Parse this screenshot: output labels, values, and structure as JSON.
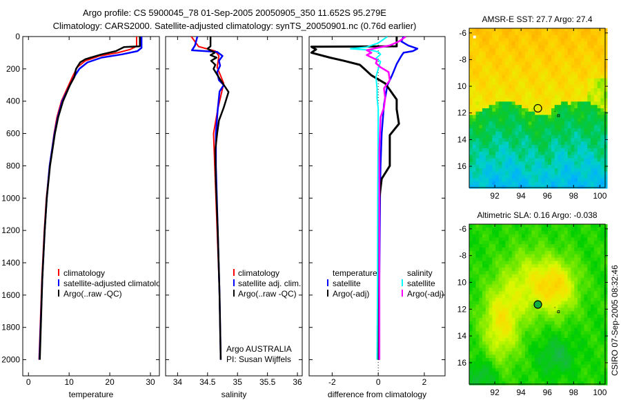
{
  "header": {
    "title_line1": "Argo profile: CS 5900045_78 01-Sep-2005 20050905_350 11.652S 95.279E",
    "title_line2": "Climatology: CARS2000. Satellite-adjusted climatology: synTS_20050901.nc (0.76d earlier)"
  },
  "side_label": "CSIRO 07-Sep-2005 08:32:46",
  "annotation": {
    "line1": "Argo AUSTRALIA",
    "line2": "PI: Susan Wijffels"
  },
  "legends": {
    "temperature": [
      "climatology",
      "satellite-adjusted climatology",
      "Argo(..raw -QC)"
    ],
    "salinity": [
      "climatology",
      "satellite adj. clim.",
      "Argo(..raw -QC)"
    ],
    "difference": {
      "temp_header": "temperature",
      "sal_header": "salinity",
      "temp_items": [
        "satellite",
        "Argo(-adj)"
      ],
      "sal_items": [
        "satellite",
        "Argo(-adj)"
      ]
    }
  },
  "colors": {
    "climatology": "#ff0000",
    "satellite": "#0000ff",
    "argo": "#000000",
    "sal_satellite": "#00ffff",
    "sal_argo": "#ff00ff"
  },
  "chart_data": [
    {
      "type": "line",
      "id": "temperature",
      "xlabel": "temperature",
      "ylabel": "depth",
      "xlim": [
        -1.4,
        32.2
      ],
      "ylim": [
        2100,
        0
      ],
      "xticks": [
        0,
        10,
        20,
        30
      ],
      "xticklabels": [
        "0",
        "10",
        "20",
        "30"
      ],
      "yticks": [
        0,
        200,
        400,
        600,
        800,
        1000,
        1200,
        1400,
        1600,
        1800,
        2000
      ],
      "yticklabels": [
        "0",
        "200",
        "400",
        "600",
        "800",
        "1000",
        "1200",
        "1400",
        "1600",
        "1800",
        "2000"
      ],
      "series": [
        {
          "name": "climatology",
          "color": "#ff0000",
          "width": 2,
          "depth": [
            0,
            60,
            80,
            100,
            120,
            150,
            190,
            250,
            300,
            400,
            500,
            600,
            800,
            1000,
            1200,
            1500,
            2000
          ],
          "values": [
            26.6,
            26.6,
            25,
            22,
            17.5,
            14,
            12,
            10.8,
            9.9,
            8.1,
            7,
            6.3,
            5.2,
            4.4,
            3.9,
            3.3,
            2.6
          ]
        },
        {
          "name": "satellite-adjusted climatology",
          "color": "#0000ff",
          "width": 2.5,
          "depth": [
            0,
            70,
            90,
            110,
            130,
            160,
            200,
            250,
            300,
            400,
            500,
            600,
            800,
            1000,
            1200,
            1500,
            2000
          ],
          "values": [
            27.8,
            27.8,
            26.8,
            23,
            18,
            14.5,
            12.5,
            11.2,
            10.2,
            8.3,
            7.2,
            6.4,
            5.2,
            4.5,
            4,
            3.4,
            2.7
          ]
        },
        {
          "name": "Argo(..raw -QC)",
          "color": "#000000",
          "width": 2.5,
          "depth": [
            0,
            60,
            65,
            90,
            110,
            140,
            160,
            200,
            250,
            300,
            400,
            500,
            600,
            800,
            1000,
            1200,
            1500,
            2000
          ],
          "values": [
            27.4,
            27.4,
            23.5,
            21.5,
            18,
            14,
            12.7,
            11.7,
            11.3,
            10.2,
            8.5,
            7.3,
            6.5,
            5.3,
            4.5,
            4,
            3.4,
            2.8
          ]
        }
      ]
    },
    {
      "type": "line",
      "id": "salinity",
      "xlabel": "salinity",
      "xlim": [
        33.8,
        36.08
      ],
      "ylim": [
        2100,
        0
      ],
      "xticks": [
        34,
        34.5,
        35,
        35.5,
        36
      ],
      "xticklabels": [
        "34",
        "34.5",
        "35",
        "35.5",
        "36"
      ],
      "yticks": [
        0,
        200,
        400,
        600,
        800,
        1000,
        1200,
        1400,
        1600,
        1800,
        2000
      ],
      "series": [
        {
          "name": "climatology",
          "color": "#ff0000",
          "width": 2,
          "depth": [
            0,
            62,
            90,
            120,
            190,
            290,
            450,
            600,
            800,
            1200,
            1600,
            2000
          ],
          "values": [
            34.23,
            34.35,
            34.63,
            34.69,
            34.66,
            34.77,
            34.67,
            34.6,
            34.62,
            34.66,
            34.7,
            34.72
          ]
        },
        {
          "name": "satellite adj. clim.",
          "color": "#0000ff",
          "width": 2.5,
          "depth": [
            0,
            55,
            85,
            95,
            120,
            150,
            180,
            220,
            270,
            300,
            340,
            450,
            600,
            800,
            1200,
            1600,
            2000
          ],
          "values": [
            34.33,
            34.29,
            34.24,
            34.66,
            34.75,
            34.69,
            34.71,
            34.66,
            34.69,
            34.77,
            34.7,
            34.67,
            34.64,
            34.64,
            34.67,
            34.7,
            34.72
          ]
        },
        {
          "name": "Argo(..raw -QC)",
          "color": "#000000",
          "width": 2.5,
          "depth": [
            0,
            60,
            75,
            100,
            115,
            130,
            150,
            175,
            200,
            260,
            343,
            440,
            520,
            600,
            700,
            900,
            1200,
            1600,
            2000
          ],
          "values": [
            34.55,
            34.55,
            34.5,
            34.62,
            34.55,
            34.65,
            34.56,
            34.63,
            34.6,
            34.7,
            34.85,
            34.77,
            34.69,
            34.66,
            34.63,
            34.64,
            34.67,
            34.7,
            34.72
          ]
        }
      ]
    },
    {
      "type": "line",
      "id": "difference",
      "xlabel": "difference from climatology",
      "xlim": [
        -3,
        2.9
      ],
      "ylim": [
        2100,
        0
      ],
      "xticks": [
        -2,
        0,
        2
      ],
      "xticklabels": [
        "-2",
        "0",
        "2"
      ],
      "yticks": [
        0,
        200,
        400,
        600,
        800,
        1000,
        1200,
        1400,
        1600,
        1800,
        2000
      ],
      "series": [
        {
          "name": "temperature satellite",
          "color": "#0000ff",
          "width": 2.5,
          "depth": [
            0,
            30,
            55,
            75,
            90,
            100,
            120,
            170,
            240,
            300,
            420,
            600,
            800,
            1000,
            1500,
            2000
          ],
          "values": [
            1.1,
            1.0,
            1.3,
            1.7,
            1.5,
            1.1,
            1.0,
            0.8,
            0.6,
            0.4,
            0.25,
            0.15,
            0.1,
            0.08,
            0.05,
            0.05
          ]
        },
        {
          "name": "temperature Argo(-adj)",
          "color": "#000000",
          "width": 3,
          "depth": [
            0,
            60,
            63,
            80,
            100,
            130,
            150,
            175,
            200,
            240,
            290,
            330,
            390,
            450,
            540,
            610,
            800,
            880,
            1000,
            1500,
            2000
          ],
          "values": [
            0.8,
            0.8,
            -2.9,
            -2.7,
            -2.9,
            -2.1,
            -1.5,
            -0.8,
            -0.6,
            -0.3,
            0.3,
            0.5,
            0.8,
            0.8,
            0.9,
            0.5,
            0.5,
            0.15,
            0.05,
            0.02,
            0.02
          ]
        },
        {
          "name": "salinity satellite",
          "color": "#00ffff",
          "width": 2,
          "depth": [
            0,
            40,
            65,
            75,
            85,
            95,
            110,
            135,
            155,
            200,
            250,
            320,
            380,
            450,
            1000,
            1500,
            2000
          ],
          "values": [
            0.4,
            0,
            -0.5,
            -1.2,
            -0.3,
            0,
            0.1,
            -0.1,
            0.1,
            0,
            -0.1,
            -0.05,
            -0.05,
            0,
            -0.02,
            -0.03,
            -0.05
          ]
        },
        {
          "name": "salinity Argo(-adj)",
          "color": "#ff00ff",
          "width": 2.5,
          "depth": [
            0,
            30,
            55,
            70,
            85,
            100,
            115,
            145,
            165,
            190,
            220,
            270,
            320,
            380,
            440,
            500,
            700,
            1200,
            2000
          ],
          "values": [
            1.2,
            0.9,
            0.5,
            -0.05,
            -0.5,
            -0.3,
            -0.5,
            -0.05,
            -0.1,
            0.1,
            0.45,
            0.5,
            0.25,
            0.3,
            0.25,
            0.1,
            0.05,
            0.05,
            0.05
          ]
        }
      ]
    },
    {
      "type": "heatmap",
      "id": "sst_map",
      "title": "AMSR-E SST: 27.7 Argo: 27.4",
      "xlim": [
        90.05,
        100.4
      ],
      "ylim": [
        -17.6,
        -5.65
      ],
      "xticks": [
        92,
        94,
        96,
        98,
        100
      ],
      "xticklabels": [
        "92",
        "94",
        "96",
        "98",
        "100"
      ],
      "yticks": [
        -6,
        -8,
        -10,
        -12,
        -14,
        -16
      ],
      "yticklabels": [
        "-6",
        "-8",
        "10",
        "12",
        "14",
        "16"
      ],
      "marker": {
        "lon": 95.279,
        "lat": -11.652,
        "filled": false
      }
    },
    {
      "type": "heatmap",
      "id": "sla_map",
      "title": "Altimetric SLA: 0.16 Argo: -0.038",
      "xlim": [
        90.05,
        100.4
      ],
      "ylim": [
        -17.6,
        -5.65
      ],
      "xticks": [
        92,
        94,
        96,
        98,
        100
      ],
      "xticklabels": [
        "92",
        "94",
        "96",
        "98",
        "100"
      ],
      "yticks": [
        -6,
        -8,
        -10,
        -12,
        -14,
        -16
      ],
      "yticklabels": [
        "-6",
        "-8",
        "10",
        "12",
        "14",
        "16"
      ],
      "marker": {
        "lon": 95.279,
        "lat": -11.652,
        "filled": true
      }
    }
  ]
}
